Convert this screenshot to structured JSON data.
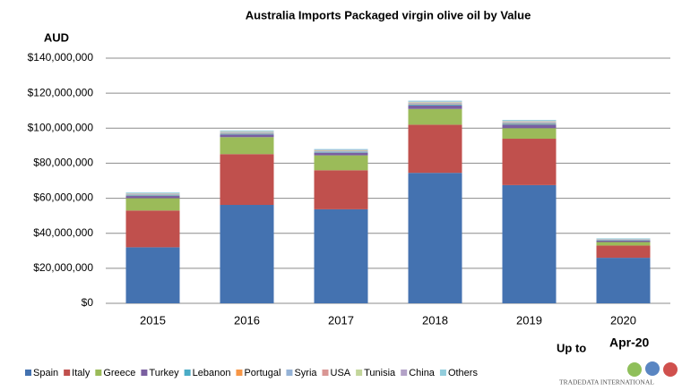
{
  "chart_data": {
    "type": "stacked_bar",
    "title": "Australia Imports Packaged virgin olive oil by Value",
    "y_label": "AUD",
    "note_prefix": "Up to",
    "note_period": "Apr-20",
    "brand": "TRADEDATA INTERNATIONAL",
    "categories": [
      "2015",
      "2016",
      "2017",
      "2018",
      "2019",
      "2020"
    ],
    "ylim": [
      0,
      140000000
    ],
    "yticks": [
      {
        "value": 0,
        "label": "$0"
      },
      {
        "value": 20000000,
        "label": "$20,000,000"
      },
      {
        "value": 40000000,
        "label": "$40,000,000"
      },
      {
        "value": 60000000,
        "label": "$60,000,000"
      },
      {
        "value": 80000000,
        "label": "$80,000,000"
      },
      {
        "value": 100000000,
        "label": "$100,000,000"
      },
      {
        "value": 120000000,
        "label": "$120,000,000"
      },
      {
        "value": 140000000,
        "label": "$140,000,000"
      }
    ],
    "grid": true,
    "legend": "bottom",
    "series": [
      {
        "name": "Spain",
        "color": "#4472b0",
        "values": [
          32000000,
          56200000,
          53700000,
          74500000,
          67500000,
          26000000
        ]
      },
      {
        "name": "Italy",
        "color": "#c0504d",
        "values": [
          21000000,
          29000000,
          22300000,
          27500000,
          26500000,
          7000000
        ]
      },
      {
        "name": "Greece",
        "color": "#9bbb59",
        "values": [
          7000000,
          9700000,
          8500000,
          9000000,
          6000000,
          2000000
        ]
      },
      {
        "name": "Turkey",
        "color": "#7a5fa0",
        "values": [
          1300000,
          1500000,
          1500000,
          2000000,
          2000000,
          800000
        ]
      },
      {
        "name": "Lebanon",
        "color": "#4bacc6",
        "values": [
          400000,
          400000,
          300000,
          500000,
          500000,
          300000
        ]
      },
      {
        "name": "Portugal",
        "color": "#f79646",
        "values": [
          100000,
          200000,
          100000,
          200000,
          200000,
          100000
        ]
      },
      {
        "name": "Syria",
        "color": "#95b3d7",
        "values": [
          400000,
          500000,
          500000,
          600000,
          600000,
          300000
        ]
      },
      {
        "name": "USA",
        "color": "#d99694",
        "values": [
          200000,
          200000,
          200000,
          300000,
          300000,
          100000
        ]
      },
      {
        "name": "Tunisia",
        "color": "#c3d69b",
        "values": [
          200000,
          300000,
          300000,
          300000,
          300000,
          100000
        ]
      },
      {
        "name": "China",
        "color": "#b3a2c7",
        "values": [
          200000,
          200000,
          200000,
          200000,
          200000,
          100000
        ]
      },
      {
        "name": "Others",
        "color": "#92cddc",
        "values": [
          500000,
          500000,
          500000,
          600000,
          600000,
          300000
        ]
      }
    ]
  }
}
